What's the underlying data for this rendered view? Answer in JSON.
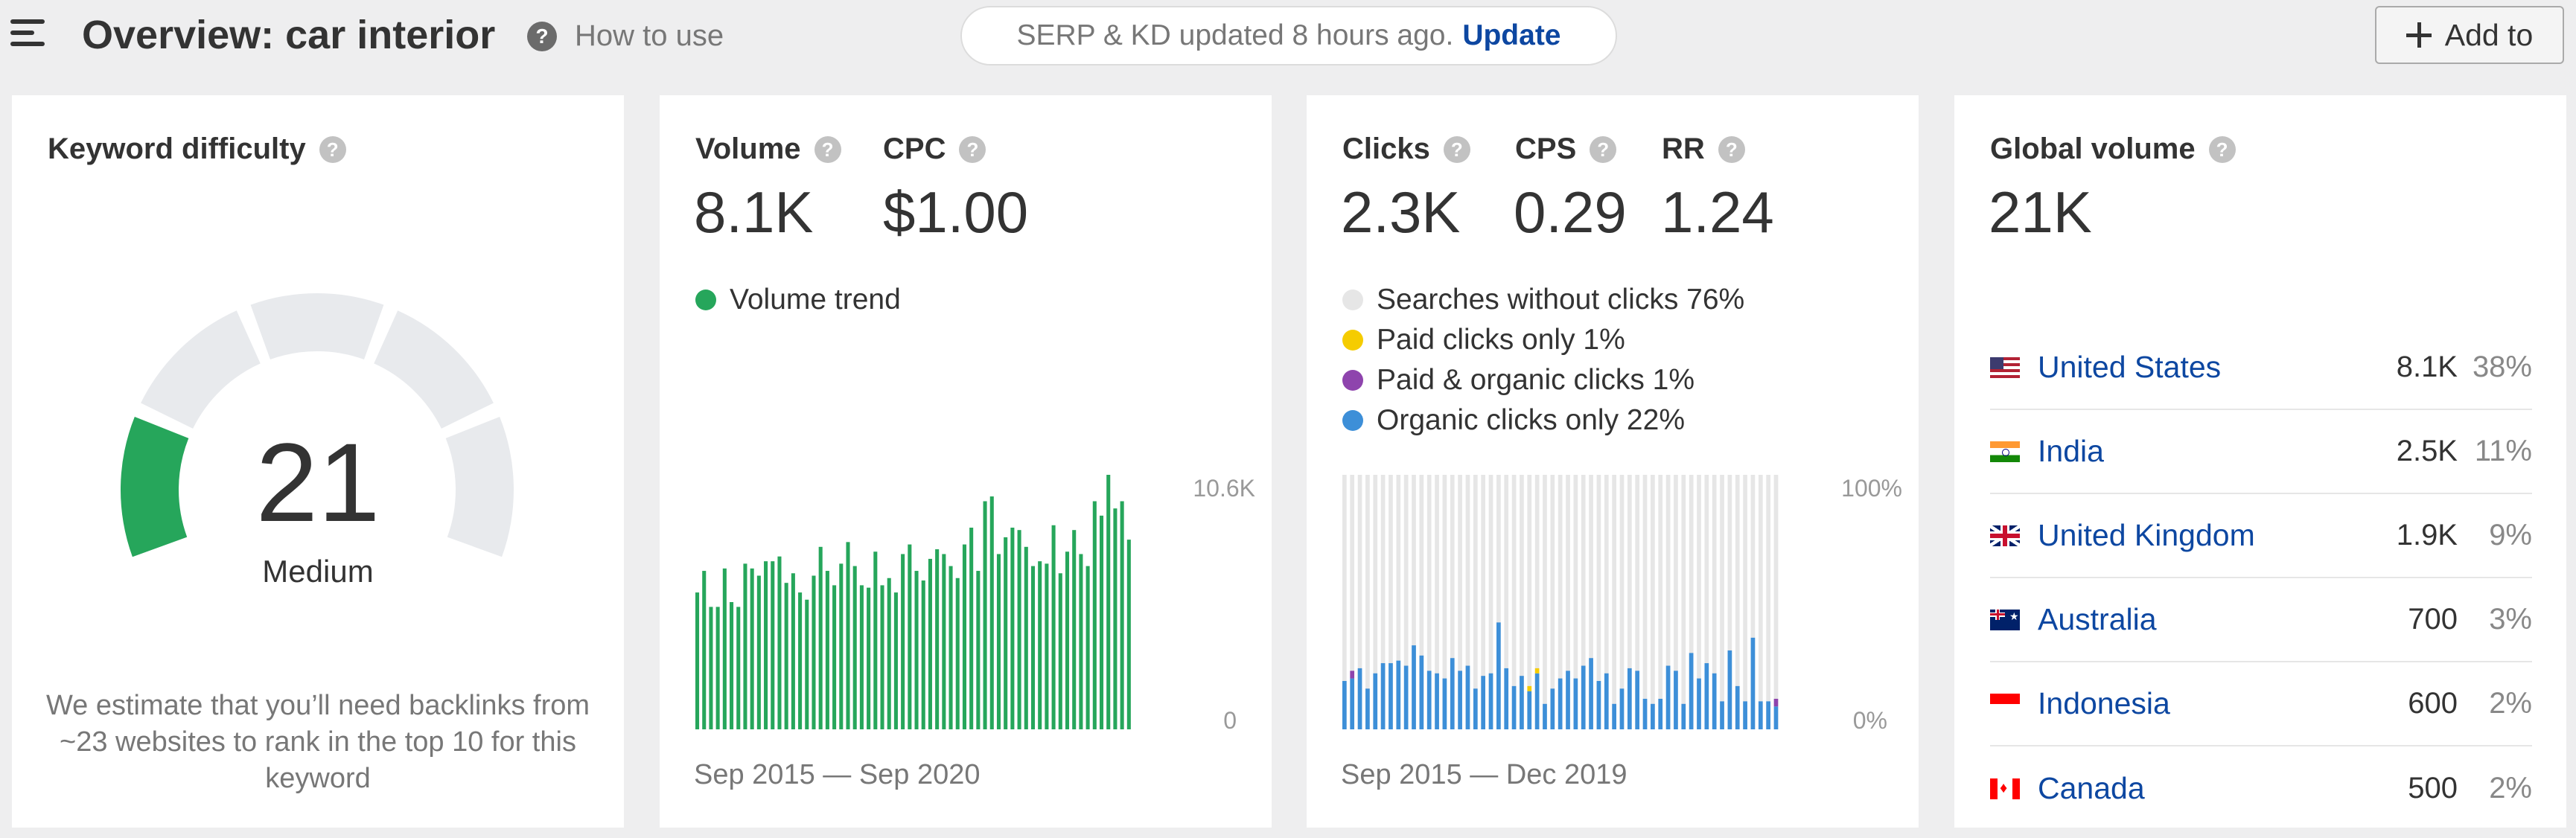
{
  "header": {
    "title": "Overview: car interior",
    "how_to_use": "How to use",
    "serp_text": "SERP & KD updated 8 hours ago.",
    "serp_update": "Update",
    "add_to": "Add to",
    "help_glyph": "?"
  },
  "icons": {
    "menu": "hamburger-menu-icon",
    "help": "question-circle-icon",
    "add": "plus-icon"
  },
  "colors": {
    "accent": "#0d47a1",
    "green": "#26a65b",
    "gauge_gray": "#e8eaed",
    "blue_bar": "#3d8fd8",
    "paid_yellow": "#f5cc00",
    "paid_organic_purple": "#8e44ad",
    "no_clicks_gray": "#e6e6e6"
  },
  "keyword_difficulty": {
    "label": "Keyword difficulty",
    "value": "21",
    "rating": "Medium",
    "score": 21,
    "description": "We estimate that you’ll need backlinks from ~23 websites to rank in the top 10 for this keyword"
  },
  "volume": {
    "volume_label": "Volume",
    "volume_value": "8.1K",
    "cpc_label": "CPC",
    "cpc_value": "$1.00",
    "legend": "Volume trend",
    "y_max_label": "10.6K",
    "y_min_label": "0",
    "date_range": "Sep 2015 — Sep 2020"
  },
  "clicks": {
    "clicks_label": "Clicks",
    "clicks_value": "2.3K",
    "cps_label": "CPS",
    "cps_value": "0.29",
    "rr_label": "RR",
    "rr_value": "1.24",
    "legend": [
      {
        "label": "Searches without clicks 76%",
        "color": "#e6e6e6"
      },
      {
        "label": "Paid clicks only 1%",
        "color": "#f5cc00"
      },
      {
        "label": "Paid & organic clicks 1%",
        "color": "#8e44ad"
      },
      {
        "label": "Organic clicks only 22%",
        "color": "#3d8fd8"
      }
    ],
    "y_max_label": "100%",
    "y_min_label": "0%",
    "date_range": "Sep 2015 — Dec 2019"
  },
  "global_volume": {
    "label": "Global volume",
    "value": "21K",
    "countries": [
      {
        "name": "United States",
        "volume": "8.1K",
        "percent": "38%",
        "flag": "us"
      },
      {
        "name": "India",
        "volume": "2.5K",
        "percent": "11%",
        "flag": "in"
      },
      {
        "name": "United Kingdom",
        "volume": "1.9K",
        "percent": "9%",
        "flag": "gb"
      },
      {
        "name": "Australia",
        "volume": "700",
        "percent": "3%",
        "flag": "au"
      },
      {
        "name": "Indonesia",
        "volume": "600",
        "percent": "2%",
        "flag": "id"
      },
      {
        "name": "Canada",
        "volume": "500",
        "percent": "2%",
        "flag": "ca"
      }
    ]
  },
  "chart_data": [
    {
      "type": "bar",
      "series": [
        {
          "values": [
            5.7,
            6.6,
            5.1,
            5.1,
            6.7,
            5.3,
            5.1,
            6.9,
            6.7,
            6.4,
            7.0,
            7.0,
            7.2,
            6.1,
            6.5,
            5.7,
            5.4,
            6.4,
            7.6,
            6.6,
            6.0,
            6.9,
            7.8,
            6.8,
            6.0,
            5.9,
            7.4,
            6.0,
            6.3,
            5.7,
            7.3,
            7.7,
            6.6,
            6.2,
            7.1,
            7.5,
            7.3,
            6.8,
            6.3,
            7.7,
            8.4,
            6.6,
            9.5,
            9.7,
            7.3,
            8.0,
            8.4,
            8.3,
            7.6,
            6.8,
            7.0,
            6.9,
            8.5,
            6.5,
            7.4,
            8.3,
            7.3,
            6.8,
            9.5,
            8.9,
            10.6,
            9.2,
            9.5,
            7.9
          ]
        }
      ],
      "x_range": [
        "Sep 2015",
        "Sep 2020"
      ],
      "ylim": [
        0,
        10.6
      ],
      "ylabel": ""
    },
    {
      "type": "bar",
      "stacked": true,
      "series": [
        {
          "name": "Organic clicks only",
          "values": [
            19,
            20,
            24,
            16,
            22,
            26,
            26,
            27,
            25,
            33,
            29,
            23,
            22,
            20,
            28,
            23,
            25,
            16,
            21,
            22,
            42,
            24,
            17,
            21,
            15,
            22,
            10,
            16,
            20,
            23,
            20,
            25,
            28,
            19,
            22,
            10,
            16,
            24,
            23,
            12,
            10,
            12,
            25,
            23,
            10,
            30,
            20,
            26,
            22,
            11,
            31,
            17,
            11,
            36,
            11,
            11,
            9
          ]
        },
        {
          "name": "Paid clicks only",
          "values": [
            0,
            0,
            0,
            0,
            0,
            0,
            0,
            0,
            0,
            0,
            0,
            0,
            0,
            0,
            0,
            0,
            0,
            0,
            0,
            0,
            0,
            0,
            0,
            0,
            2,
            2,
            0,
            0,
            0,
            0,
            0,
            0,
            0,
            0,
            0,
            0,
            0,
            0,
            0,
            0,
            0,
            0,
            0,
            0,
            0,
            0,
            0,
            0,
            0,
            0,
            0,
            0,
            0,
            0,
            0,
            0,
            0
          ]
        },
        {
          "name": "Paid & organic clicks",
          "values": [
            0,
            3,
            0,
            0,
            0,
            0,
            0,
            0,
            0,
            0,
            0,
            0,
            0,
            0,
            0,
            0,
            0,
            0,
            0,
            0,
            0,
            0,
            0,
            0,
            0,
            0,
            0,
            0,
            0,
            0,
            0,
            0,
            0,
            0,
            0,
            0,
            0,
            0,
            0,
            0,
            0,
            0,
            0,
            0,
            0,
            0,
            0,
            0,
            0,
            0,
            0,
            0,
            0,
            0,
            0,
            0,
            3
          ]
        }
      ],
      "x_range": [
        "Sep 2015",
        "Dec 2019"
      ],
      "ylim": [
        0,
        100
      ],
      "ylabel": ""
    }
  ]
}
